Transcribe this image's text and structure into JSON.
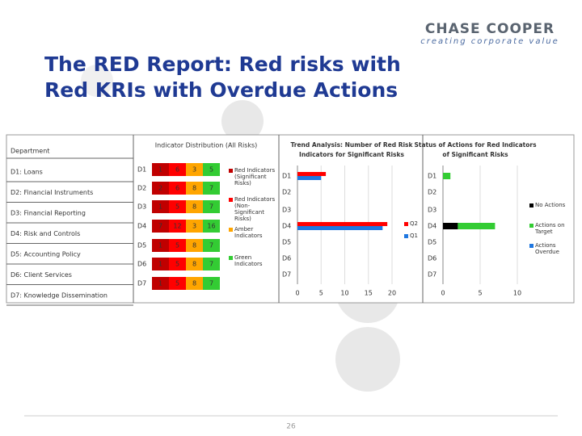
{
  "header": {
    "logo": "CHASE COOPER",
    "tagline": "creating corporate value",
    "title_lines": [
      "The RED Report: Red risks with",
      "Red KRIs with Overdue Actions"
    ]
  },
  "table": {
    "header": "Department",
    "rows": [
      "D1: Loans",
      "D2: Financial Instruments",
      "D3: Financial Reporting",
      "D4: Risk and Controls",
      "D5: Accounting Policy",
      "D6: Client Services",
      "D7: Knowledge Dissemination"
    ]
  },
  "chart_data": [
    {
      "type": "cell-table",
      "title": "Indicator Distribution (All Risks)",
      "categories": [
        "D1",
        "D2",
        "D3",
        "D4",
        "D5",
        "D6",
        "D7"
      ],
      "series": [
        {
          "name": "Red Indicators (Significant Risks)",
          "color": "#c00000",
          "values": [
            1,
            2,
            1,
            7,
            1,
            1,
            1
          ]
        },
        {
          "name": "Red Indicators (Non-Significant Risks)",
          "color": "#ff0000",
          "values": [
            6,
            6,
            5,
            12,
            5,
            5,
            5
          ]
        },
        {
          "name": "Amber Indicators",
          "color": "#ffa500",
          "values": [
            3,
            8,
            8,
            3,
            8,
            8,
            8
          ]
        },
        {
          "name": "Green Indicators",
          "color": "#33cc33",
          "values": [
            5,
            7,
            7,
            16,
            7,
            7,
            7
          ]
        }
      ]
    },
    {
      "type": "bar",
      "stacked": false,
      "title_lines": [
        "Trend Analysis: Number of Red Risk",
        "Indicators for Significant Risks"
      ],
      "categories": [
        "D1",
        "D2",
        "D3",
        "D4",
        "D5",
        "D6",
        "D7"
      ],
      "series": [
        {
          "name": "Q2",
          "color": "#ff0000",
          "values": [
            6,
            0,
            0,
            19,
            0,
            0,
            0
          ]
        },
        {
          "name": "Q1",
          "color": "#1f77e0",
          "values": [
            5,
            0,
            0,
            18,
            0,
            0,
            0
          ]
        }
      ],
      "xlim": [
        0,
        20
      ],
      "xticks": [
        0,
        5,
        10,
        15,
        20
      ],
      "grid": true
    },
    {
      "type": "bar",
      "stacked": true,
      "title_lines": [
        "Status of Actions for Red Indicators",
        "of Significant Risks"
      ],
      "categories": [
        "D1",
        "D2",
        "D3",
        "D4",
        "D5",
        "D6",
        "D7"
      ],
      "series": [
        {
          "name": "No Actions",
          "color": "#000000",
          "values": [
            0,
            0,
            0,
            2,
            0,
            0,
            0
          ]
        },
        {
          "name": "Actions on Target",
          "color": "#33cc33",
          "values": [
            1,
            0,
            0,
            5,
            0,
            0,
            0
          ]
        },
        {
          "name": "Actions Overdue",
          "color": "#1f77e0",
          "values": [
            0,
            0,
            0,
            0,
            0,
            0,
            0
          ]
        }
      ],
      "xlim": [
        0,
        10
      ],
      "xticks": [
        0,
        5,
        10
      ],
      "grid": true
    }
  ],
  "footer": {
    "page": "26"
  }
}
